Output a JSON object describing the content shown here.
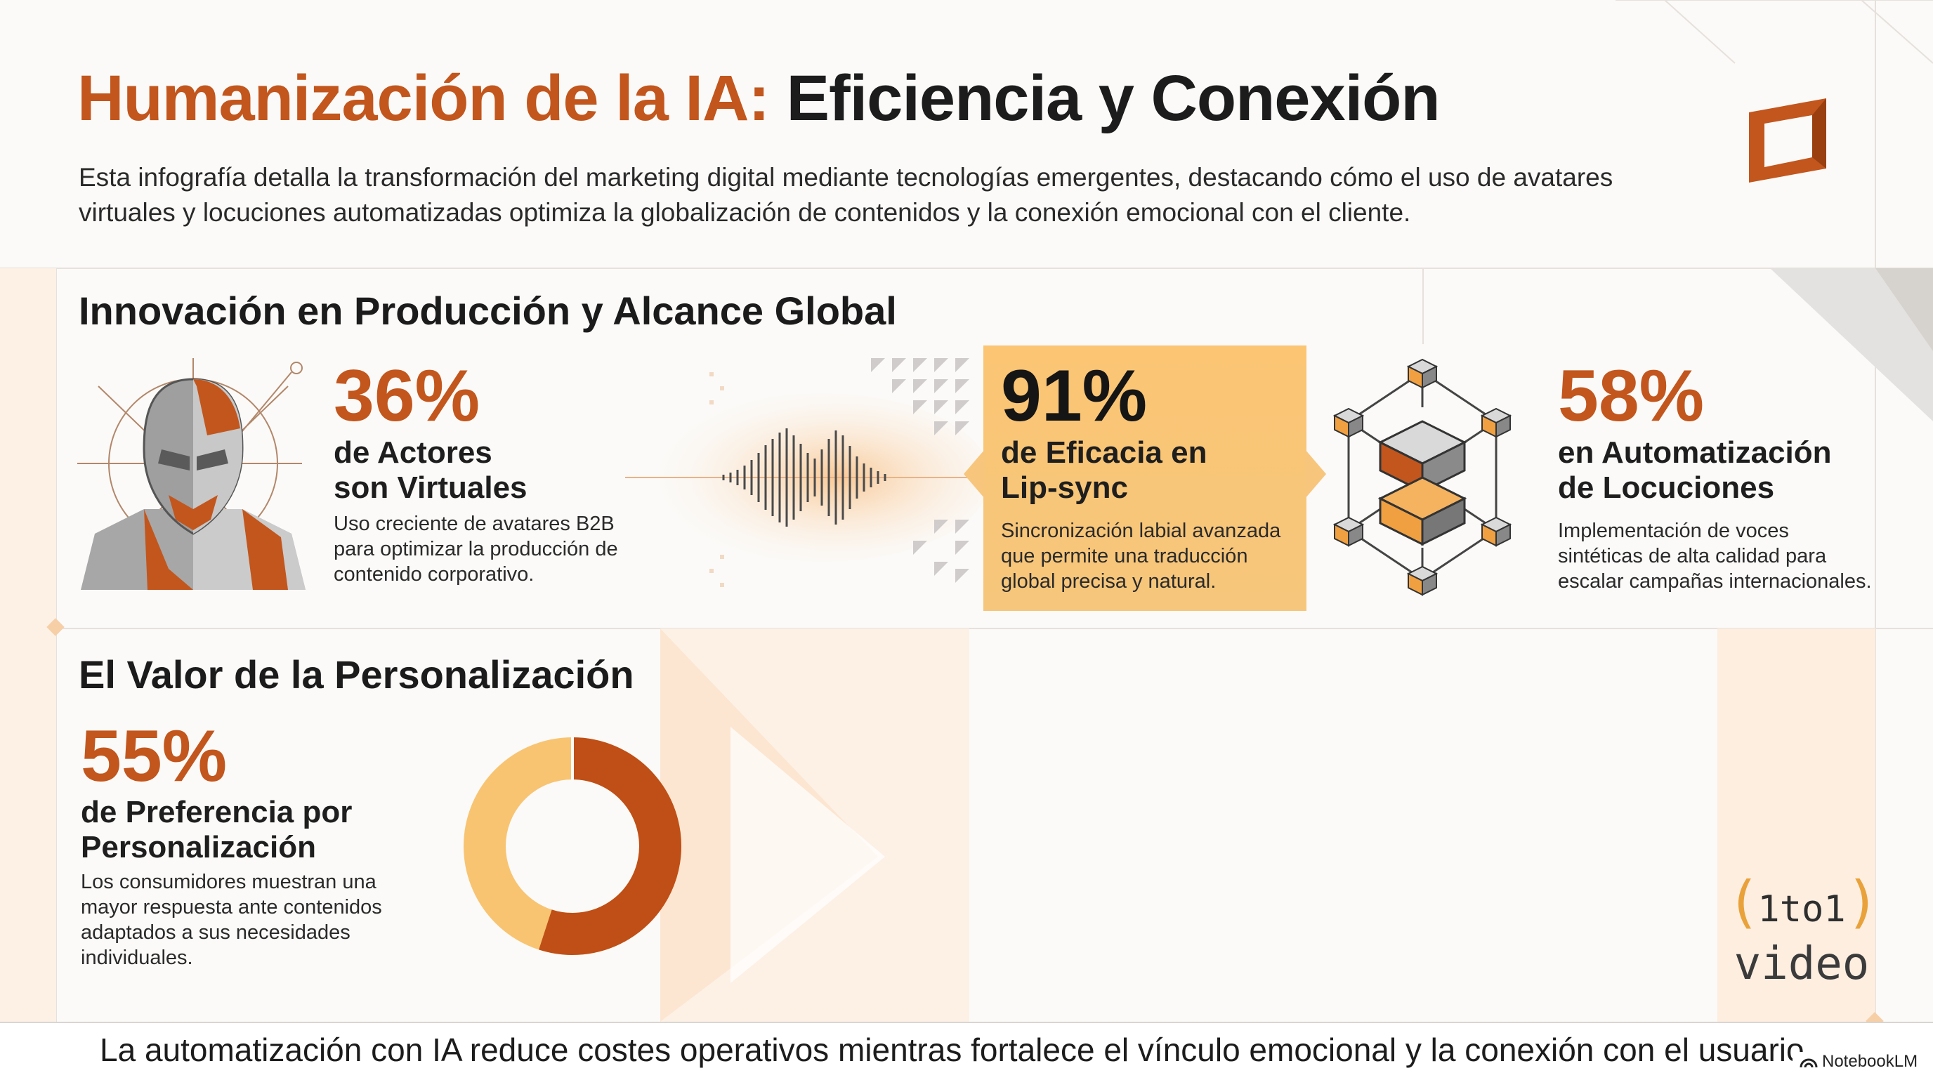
{
  "header": {
    "title_accent": "Humanización de la IA:",
    "title_rest": " Eficiencia y Conexión",
    "intro": "Esta infografía detalla la transformación del marketing digital mediante tecnologías emergentes, destacando cómo el uso de avatares virtuales y locuciones automatizadas optimiza la globalización de contenidos y la conexión emocional con el cliente."
  },
  "section_production": {
    "title": "Innovación en Producción y Alcance Global",
    "stats": [
      {
        "value": "36%",
        "label_line1": "de Actores",
        "label_line2": "son Virtuales",
        "description": [
          "Uso creciente de avatares B2B",
          "para optimizar la producción de",
          "contenido corporativo."
        ]
      },
      {
        "value": "91%",
        "label_line1": "de Eficacia en",
        "label_line2": "Lip-sync",
        "description": [
          "Sincronización labial avanzada",
          "que permite una traducción",
          "global precisa y natural."
        ]
      },
      {
        "value": "58%",
        "label_line1": "en Automatización",
        "label_line2": "de Locuciones",
        "description": [
          "Implementación de voces",
          "sintéticas de alta calidad para",
          "escalar campañas internacionales."
        ]
      }
    ]
  },
  "section_personalization": {
    "title": "El Valor de la Personalización",
    "value": "55%",
    "percent": 55,
    "label_line1": "de Preferencia por",
    "label_line2": "Personalización",
    "description": [
      "Los consumidores muestran una",
      "mayor respuesta ante contenidos",
      "adaptados a sus necesidades",
      "individuales."
    ]
  },
  "footer": {
    "text": "La automatización con IA reduce costes operativos mientras fortalece el vínculo emocional y la conexión con el usuario.",
    "badge": "NotebookLM"
  },
  "logo": {
    "paren_open": "(",
    "one_a": "1",
    "to": "to",
    "one_b": "1",
    "paren_close": ")",
    "bottom": "video"
  },
  "colors": {
    "accent": "#c2561d",
    "light_orange": "#fbc573",
    "donut_light": "#f8c471",
    "donut_dark": "#bf4f17"
  },
  "icons": [
    "logo-square-icon",
    "avatar-head-icon",
    "sound-wave-icon",
    "cubes-network-icon",
    "donut-chart"
  ]
}
